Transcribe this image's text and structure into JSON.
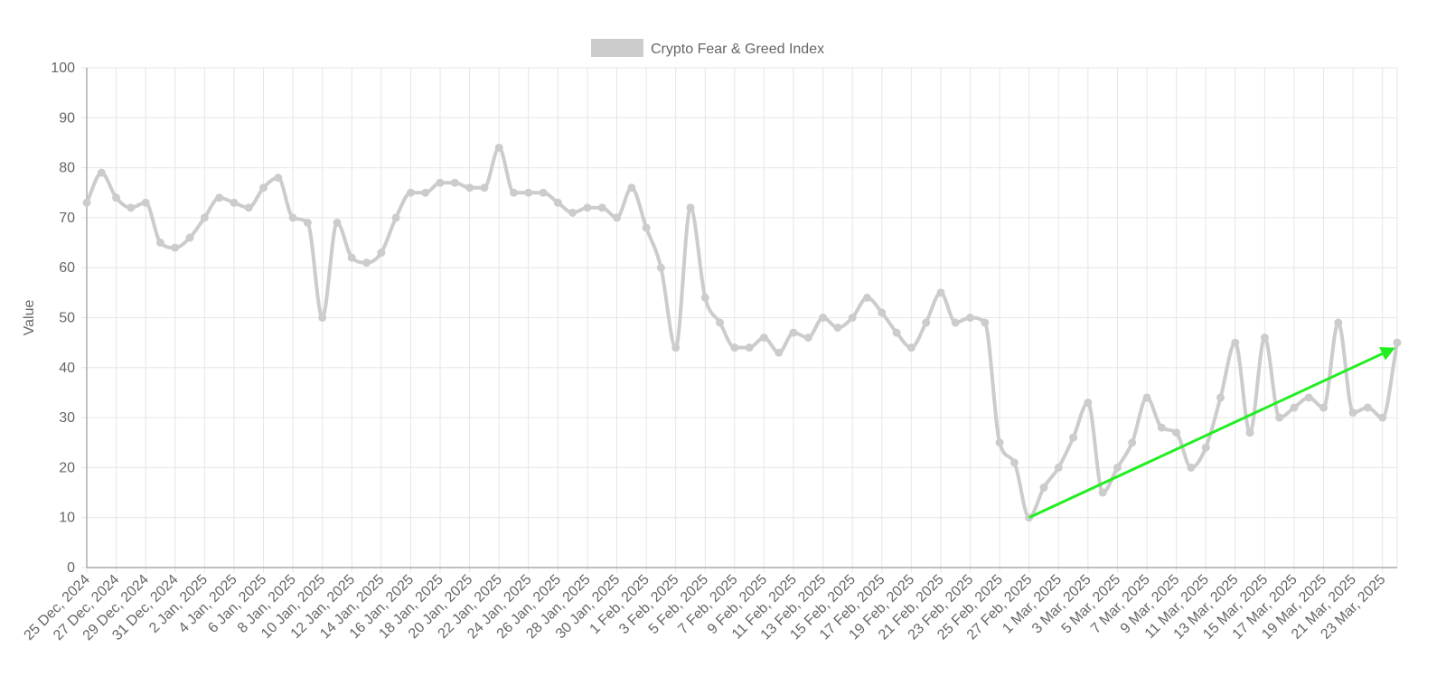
{
  "colors": {
    "series": "#cccccc",
    "trend_arrow": "#22ee22",
    "grid": "#e6e6e6",
    "axis": "#999999",
    "text": "#666666"
  },
  "chart_data": {
    "type": "line",
    "title": "",
    "legend": {
      "position": "top-center",
      "label": "Crypto Fear & Greed Index"
    },
    "ylabel": "Value",
    "xlabel": "",
    "ylim": [
      0,
      100
    ],
    "yticks": [
      0,
      10,
      20,
      30,
      40,
      50,
      60,
      70,
      80,
      90,
      100
    ],
    "grid": true,
    "x_tick_labels": [
      "25 Dec, 2024",
      "27 Dec, 2024",
      "29 Dec, 2024",
      "31 Dec, 2024",
      "2 Jan, 2025",
      "4 Jan, 2025",
      "6 Jan, 2025",
      "8 Jan, 2025",
      "10 Jan, 2025",
      "12 Jan, 2025",
      "14 Jan, 2025",
      "16 Jan, 2025",
      "18 Jan, 2025",
      "20 Jan, 2025",
      "22 Jan, 2025",
      "24 Jan, 2025",
      "26 Jan, 2025",
      "28 Jan, 2025",
      "30 Jan, 2025",
      "1 Feb, 2025",
      "3 Feb, 2025",
      "5 Feb, 2025",
      "7 Feb, 2025",
      "9 Feb, 2025",
      "11 Feb, 2025",
      "13 Feb, 2025",
      "15 Feb, 2025",
      "17 Feb, 2025",
      "19 Feb, 2025",
      "21 Feb, 2025",
      "23 Feb, 2025",
      "25 Feb, 2025",
      "27 Feb, 2025",
      "1 Mar, 2025",
      "3 Mar, 2025",
      "5 Mar, 2025",
      "7 Mar, 2025",
      "9 Mar, 2025",
      "11 Mar, 2025",
      "13 Mar, 2025",
      "15 Mar, 2025",
      "17 Mar, 2025",
      "19 Mar, 2025",
      "21 Mar, 2025",
      "23 Mar, 2025"
    ],
    "x_start": "25 Dec, 2024",
    "x_end": "24 Mar, 2025",
    "series": [
      {
        "name": "Crypto Fear & Greed Index",
        "values": [
          73,
          79,
          74,
          72,
          73,
          65,
          64,
          66,
          70,
          74,
          73,
          72,
          76,
          78,
          70,
          69,
          50,
          69,
          62,
          61,
          63,
          70,
          75,
          75,
          77,
          77,
          76,
          76,
          84,
          75,
          75,
          75,
          73,
          71,
          72,
          72,
          70,
          76,
          68,
          60,
          44,
          72,
          54,
          49,
          44,
          44,
          46,
          43,
          47,
          46,
          50,
          48,
          50,
          54,
          51,
          47,
          44,
          49,
          55,
          49,
          50,
          49,
          25,
          21,
          10,
          16,
          20,
          26,
          33,
          15,
          20,
          25,
          34,
          28,
          27,
          20,
          24,
          34,
          45,
          27,
          46,
          30,
          32,
          34,
          32,
          49,
          31,
          32,
          30,
          45
        ]
      }
    ],
    "annotations": [
      {
        "type": "trend-arrow",
        "from": {
          "x": "27 Feb, 2025",
          "y": 10
        },
        "to": {
          "x": "24 Mar, 2025",
          "y": 44
        }
      }
    ]
  }
}
